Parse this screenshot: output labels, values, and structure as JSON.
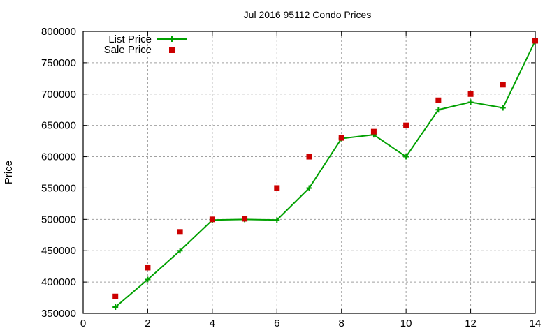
{
  "chart_data": {
    "type": "line",
    "title": "Jul 2016 95112 Condo Prices",
    "xlabel": "",
    "ylabel": "Price",
    "xlim": [
      0,
      14
    ],
    "ylim": [
      350000,
      800000
    ],
    "x_ticks": [
      0,
      2,
      4,
      6,
      8,
      10,
      12,
      14
    ],
    "y_ticks": [
      350000,
      400000,
      450000,
      500000,
      550000,
      600000,
      650000,
      700000,
      750000,
      800000
    ],
    "grid": true,
    "legend_position": "top-left",
    "x": [
      1,
      2,
      3,
      4,
      5,
      6,
      7,
      8,
      9,
      10,
      11,
      12,
      13,
      14
    ],
    "series": [
      {
        "name": "List Price",
        "style": "linespoints",
        "marker": "plus",
        "color": "#00a000",
        "values": [
          360000,
          404000,
          450000,
          499000,
          500000,
          499000,
          550000,
          629000,
          635000,
          600000,
          675000,
          687000,
          678000,
          785000
        ]
      },
      {
        "name": "Sale Price",
        "style": "points",
        "marker": "square",
        "color": "#cc0000",
        "values": [
          377000,
          423000,
          480000,
          500000,
          501000,
          550000,
          600000,
          630000,
          640000,
          650000,
          690000,
          700000,
          715000,
          785000
        ]
      }
    ]
  },
  "legend": {
    "list_label": "List Price",
    "sale_label": "Sale Price"
  }
}
